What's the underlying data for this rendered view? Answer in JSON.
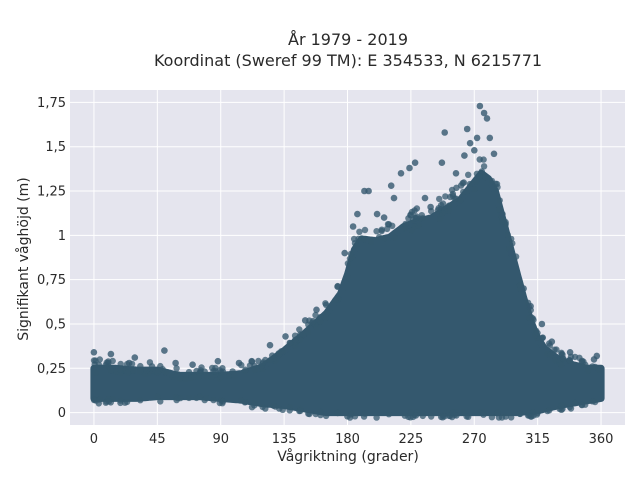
{
  "chart_data": {
    "type": "scatter",
    "title": [
      "År 1979 - 2019",
      "Koordinat (Sweref 99 TM): E 354533, N 6215771"
    ],
    "xlabel": "Vågriktning (grader)",
    "ylabel": "Signifikant våghöjd (m)",
    "xlim": [
      -17,
      377
    ],
    "ylim": [
      -0.07,
      1.82
    ],
    "xticks": [
      0,
      45,
      90,
      135,
      180,
      225,
      270,
      315,
      360
    ],
    "xtick_labels": [
      "0",
      "45",
      "90",
      "135",
      "180",
      "225",
      "270",
      "315",
      "360"
    ],
    "yticks": [
      0,
      0.25,
      0.5,
      0.75,
      1,
      1.25,
      1.5,
      1.75
    ],
    "ytick_labels": [
      "0",
      "0,25",
      "0,5",
      "0,75",
      "1",
      "1,25",
      "1,5",
      "1,75"
    ],
    "grid": true,
    "marker_color": "#34586e",
    "background_color": "#e5e5ee",
    "upper_envelope": {
      "x": [
        0,
        15,
        30,
        45,
        60,
        75,
        90,
        105,
        120,
        135,
        150,
        165,
        175,
        180,
        185,
        190,
        200,
        210,
        220,
        230,
        240,
        250,
        260,
        265,
        270,
        275,
        280,
        285,
        290,
        295,
        300,
        305,
        310,
        315,
        320,
        330,
        340,
        350,
        360
      ],
      "y": [
        0.25,
        0.25,
        0.24,
        0.24,
        0.21,
        0.21,
        0.21,
        0.22,
        0.26,
        0.35,
        0.45,
        0.56,
        0.67,
        0.78,
        0.92,
        0.98,
        0.97,
        0.99,
        1.05,
        1.08,
        1.1,
        1.15,
        1.2,
        1.25,
        1.3,
        1.35,
        1.32,
        1.25,
        1.1,
        0.95,
        0.8,
        0.65,
        0.52,
        0.42,
        0.36,
        0.3,
        0.27,
        0.25,
        0.25
      ]
    },
    "lower_envelope": {
      "x": [
        0,
        15,
        30,
        45,
        60,
        75,
        90,
        105,
        120,
        135,
        150,
        165,
        180,
        225,
        270,
        300,
        315,
        330,
        345,
        360
      ],
      "y": [
        0.08,
        0.08,
        0.08,
        0.09,
        0.09,
        0.09,
        0.08,
        0.07,
        0.05,
        0.04,
        0.02,
        0.0,
        0.0,
        0.0,
        0.0,
        0.0,
        0.01,
        0.04,
        0.06,
        0.08
      ]
    },
    "outliers": [
      {
        "x": 0,
        "y": 0.34
      },
      {
        "x": 12,
        "y": 0.33
      },
      {
        "x": 25,
        "y": 0.28
      },
      {
        "x": 29,
        "y": 0.31
      },
      {
        "x": 50,
        "y": 0.35
      },
      {
        "x": 58,
        "y": 0.28
      },
      {
        "x": 70,
        "y": 0.27
      },
      {
        "x": 88,
        "y": 0.29
      },
      {
        "x": 103,
        "y": 0.28
      },
      {
        "x": 112,
        "y": 0.29
      },
      {
        "x": 125,
        "y": 0.38
      },
      {
        "x": 136,
        "y": 0.43
      },
      {
        "x": 150,
        "y": 0.52
      },
      {
        "x": 158,
        "y": 0.58
      },
      {
        "x": 173,
        "y": 0.71
      },
      {
        "x": 178,
        "y": 0.9
      },
      {
        "x": 184,
        "y": 1.05
      },
      {
        "x": 187,
        "y": 1.12
      },
      {
        "x": 192,
        "y": 1.25
      },
      {
        "x": 195,
        "y": 1.25
      },
      {
        "x": 201,
        "y": 1.12
      },
      {
        "x": 206,
        "y": 1.1
      },
      {
        "x": 211,
        "y": 1.28
      },
      {
        "x": 213,
        "y": 1.21
      },
      {
        "x": 218,
        "y": 1.35
      },
      {
        "x": 224,
        "y": 1.38
      },
      {
        "x": 228,
        "y": 1.41
      },
      {
        "x": 235,
        "y": 1.21
      },
      {
        "x": 239,
        "y": 1.16
      },
      {
        "x": 247,
        "y": 1.41
      },
      {
        "x": 249,
        "y": 1.58
      },
      {
        "x": 257,
        "y": 1.35
      },
      {
        "x": 263,
        "y": 1.45
      },
      {
        "x": 265,
        "y": 1.6
      },
      {
        "x": 267,
        "y": 1.52
      },
      {
        "x": 270,
        "y": 1.48
      },
      {
        "x": 272,
        "y": 1.55
      },
      {
        "x": 274,
        "y": 1.73
      },
      {
        "x": 277,
        "y": 1.69
      },
      {
        "x": 279,
        "y": 1.66
      },
      {
        "x": 281,
        "y": 1.55
      },
      {
        "x": 284,
        "y": 1.46
      },
      {
        "x": 290,
        "y": 1.12
      },
      {
        "x": 296,
        "y": 0.9
      },
      {
        "x": 305,
        "y": 0.7
      },
      {
        "x": 310,
        "y": 0.6
      },
      {
        "x": 318,
        "y": 0.5
      },
      {
        "x": 325,
        "y": 0.4
      },
      {
        "x": 338,
        "y": 0.34
      },
      {
        "x": 355,
        "y": 0.3
      },
      {
        "x": 357,
        "y": 0.32
      }
    ]
  }
}
